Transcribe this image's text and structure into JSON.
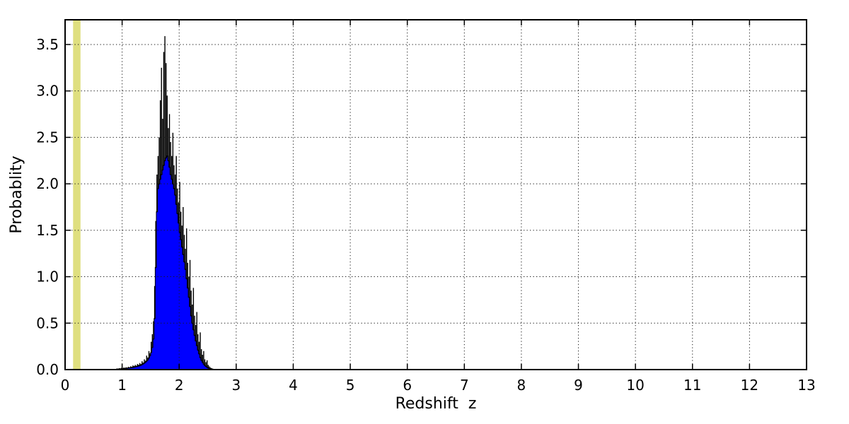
{
  "figure": {
    "background": "#ffffff",
    "frame_color": "#000000"
  },
  "axes": {
    "xlabel": "Redshift  z",
    "ylabel": "Probablity",
    "xlim": [
      0,
      13
    ],
    "ylim": [
      0,
      3.766
    ],
    "x_tick_labels": [
      "0",
      "1",
      "2",
      "3",
      "4",
      "5",
      "6",
      "7",
      "8",
      "9",
      "10",
      "11",
      "12",
      "13"
    ],
    "x_tick_values": [
      0,
      1,
      2,
      3,
      4,
      5,
      6,
      7,
      8,
      9,
      10,
      11,
      12,
      13
    ],
    "y_tick_labels": [
      "0.0",
      "0.5",
      "1.0",
      "1.5",
      "2.0",
      "2.5",
      "3.0",
      "3.5"
    ],
    "y_tick_values": [
      0.0,
      0.5,
      1.0,
      1.5,
      2.0,
      2.5,
      3.0,
      3.5
    ],
    "grid_style": "dotted",
    "grid_color": "#1a1a1a"
  },
  "chart_data": {
    "type": "bar",
    "subtype": "histogram",
    "title": "",
    "xlabel": "Redshift  z",
    "ylabel": "Probablity",
    "xlim": [
      0,
      13
    ],
    "ylim": [
      0,
      3.766
    ],
    "legend": "none",
    "grid": "on",
    "fill_color": "#0000ff",
    "edge_color": "#000000",
    "bin_start": 0.84,
    "bin_width": 0.02,
    "peak": {
      "z": 1.74,
      "value": 3.59
    },
    "fill_heights": [
      0.002,
      0.003,
      0.004,
      0.005,
      0.006,
      0.007,
      0.008,
      0.01,
      0.011,
      0.012,
      0.013,
      0.015,
      0.016,
      0.018,
      0.02,
      0.022,
      0.024,
      0.026,
      0.028,
      0.03,
      0.033,
      0.036,
      0.04,
      0.044,
      0.048,
      0.055,
      0.062,
      0.07,
      0.08,
      0.092,
      0.105,
      0.125,
      0.15,
      0.185,
      0.24,
      0.33,
      0.55,
      1.1,
      1.7,
      1.95,
      2.0,
      2.05,
      2.1,
      2.15,
      2.2,
      2.25,
      2.28,
      2.3,
      2.25,
      2.18,
      2.1,
      2.05,
      2.0,
      1.95,
      1.88,
      1.78,
      1.68,
      1.58,
      1.48,
      1.4,
      1.32,
      1.24,
      1.16,
      1.08,
      0.98,
      0.88,
      0.78,
      0.68,
      0.58,
      0.5,
      0.43,
      0.37,
      0.31,
      0.26,
      0.21,
      0.17,
      0.13,
      0.1,
      0.08,
      0.06,
      0.045,
      0.034,
      0.025,
      0.018,
      0.013,
      0.009,
      0.006,
      0.004,
      0.003,
      0.002,
      0.001
    ],
    "spike_heights": [
      0.005,
      0.007,
      0.008,
      0.012,
      0.01,
      0.015,
      0.013,
      0.018,
      0.015,
      0.022,
      0.018,
      0.025,
      0.02,
      0.03,
      0.025,
      0.035,
      0.03,
      0.045,
      0.038,
      0.05,
      0.042,
      0.06,
      0.052,
      0.07,
      0.06,
      0.09,
      0.075,
      0.11,
      0.095,
      0.15,
      0.13,
      0.2,
      0.175,
      0.3,
      0.38,
      0.52,
      0.9,
      1.6,
      2.1,
      2.3,
      2.5,
      2.9,
      3.25,
      2.7,
      3.42,
      3.59,
      3.3,
      2.95,
      2.6,
      2.75,
      2.45,
      2.3,
      2.55,
      2.2,
      2.1,
      2.3,
      1.95,
      1.8,
      2.02,
      1.7,
      1.55,
      1.75,
      1.45,
      1.3,
      1.52,
      1.15,
      1.0,
      1.18,
      0.85,
      0.7,
      0.88,
      0.58,
      0.48,
      0.62,
      0.38,
      0.3,
      0.4,
      0.22,
      0.16,
      0.2,
      0.11,
      0.08,
      0.1,
      0.05,
      0.034,
      0.022,
      0.015,
      0.01,
      0.006,
      0.004,
      0.003
    ],
    "highlight_band": {
      "z_min": 0.14,
      "z_max": 0.27,
      "color": "#dfdf7f"
    }
  }
}
